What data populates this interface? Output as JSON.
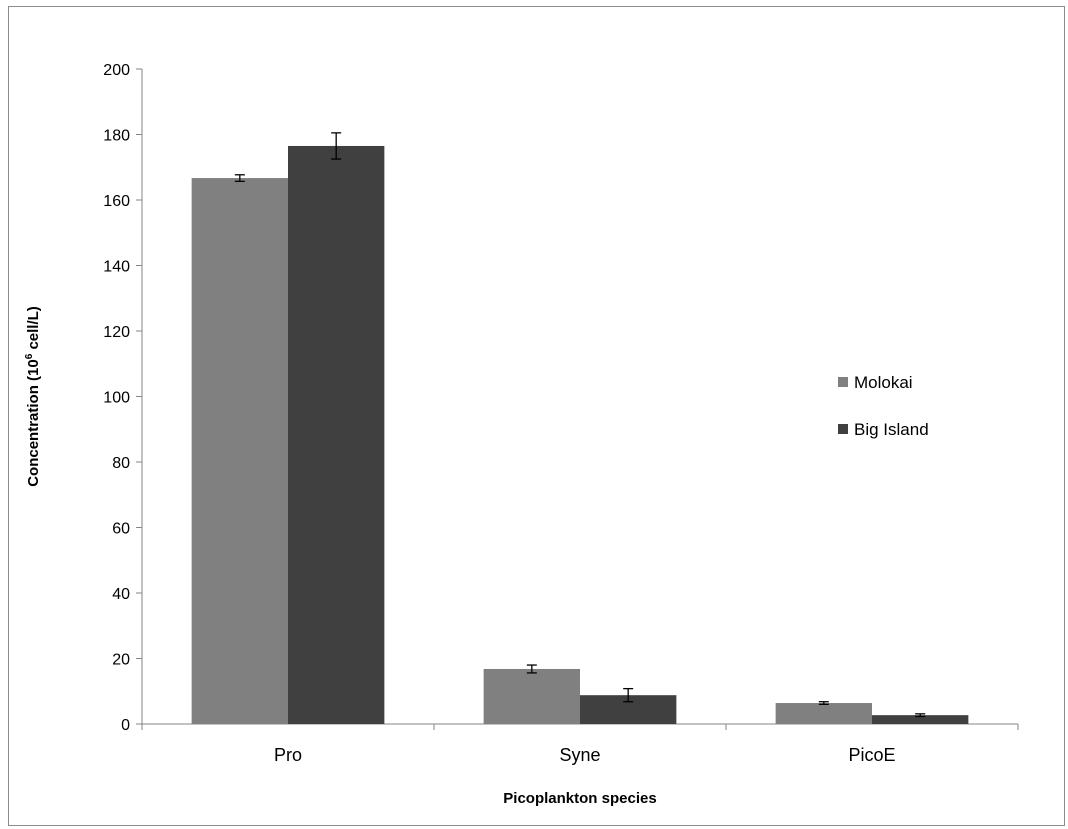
{
  "chart_data": {
    "type": "bar",
    "categories": [
      "Pro",
      "Syne",
      "PicoE"
    ],
    "series": [
      {
        "name": "Molokai",
        "color": "#808080",
        "values": [
          166.7,
          16.8,
          6.4
        ],
        "errors": [
          1.0,
          1.2,
          0.4
        ]
      },
      {
        "name": "Big Island",
        "color": "#404040",
        "values": [
          176.5,
          8.8,
          2.7
        ],
        "errors": [
          4.0,
          2.0,
          0.4
        ]
      }
    ],
    "xlabel": "Picoplankton species",
    "ylabel_main": "Concentration (10",
    "ylabel_sup": "6",
    "ylabel_tail": " cell/L)",
    "ylim": [
      0,
      200
    ],
    "yticks": [
      0,
      20,
      40,
      60,
      80,
      100,
      120,
      140,
      160,
      180,
      200
    ],
    "grid": false,
    "legend_position": "right"
  }
}
